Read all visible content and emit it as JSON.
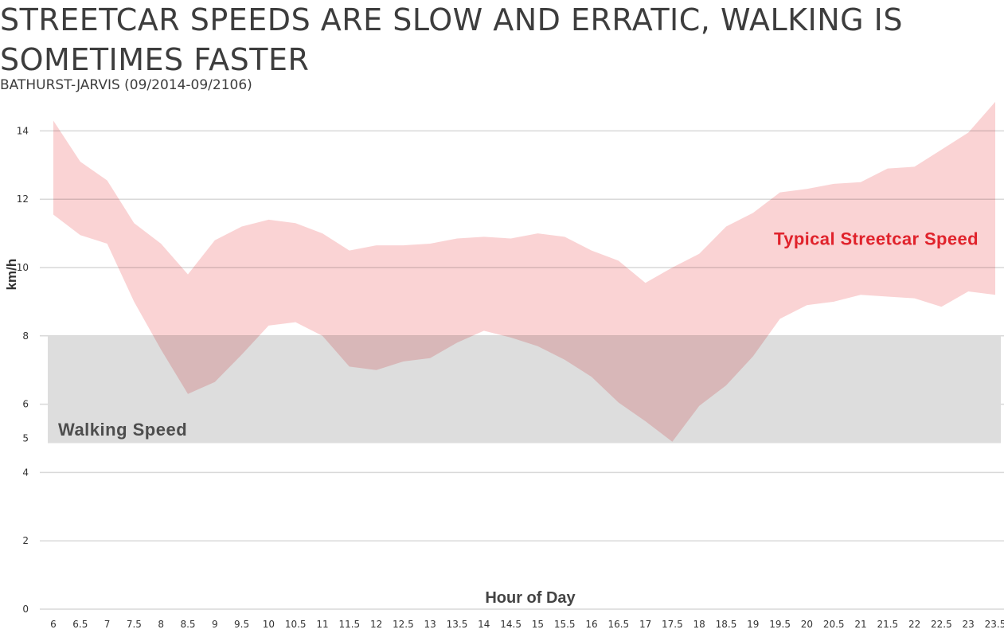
{
  "chart_data": {
    "type": "area",
    "title": "STREETCAR SPEEDS ARE SLOW AND ERRATIC, WALKING IS SOMETIMES FASTER",
    "subtitle": "BATHURST-JARVIS (09/2014-09/2106)",
    "xlabel": "Hour of Day",
    "ylabel": "km/h",
    "x": [
      6,
      6.5,
      7,
      7.5,
      8,
      8.5,
      9,
      9.5,
      10,
      10.5,
      11,
      11.5,
      12,
      12.5,
      13,
      13.5,
      14,
      14.5,
      15,
      15.5,
      16,
      16.5,
      17,
      17.5,
      18,
      18.5,
      19,
      19.5,
      20,
      20.5,
      21,
      21.5,
      22,
      22.5,
      23,
      23.5
    ],
    "x_tick_labels": [
      "6",
      "6.5",
      "7",
      "7.5",
      "8",
      "8.5",
      "9",
      "9.5",
      "10",
      "10.5",
      "11",
      "11.5",
      "12",
      "12.5",
      "13",
      "13.5",
      "14",
      "14.5",
      "15",
      "15.5",
      "16",
      "16.5",
      "17",
      "17.5",
      "18",
      "18.5",
      "19",
      "19.5",
      "20",
      "20.5",
      "21",
      "21.5",
      "22",
      "22.5",
      "23",
      "23.5"
    ],
    "y_ticks": [
      0,
      2,
      4,
      5,
      6,
      8,
      10,
      12,
      14
    ],
    "ylim": [
      0,
      15
    ],
    "grid": true,
    "series": [
      {
        "name": "Typical Streetcar Speed",
        "color": "#f9c9cb",
        "label_color": "#e0222b",
        "upper": [
          14.3,
          13.1,
          12.55,
          11.3,
          10.7,
          9.8,
          10.8,
          11.2,
          11.4,
          11.3,
          11.0,
          10.5,
          10.65,
          10.65,
          10.7,
          10.85,
          10.9,
          10.85,
          11.0,
          10.9,
          10.5,
          10.2,
          9.55,
          10.0,
          10.4,
          11.2,
          11.6,
          12.2,
          12.3,
          12.45,
          12.5,
          12.9,
          12.95,
          13.45,
          13.95,
          14.85
        ],
        "lower": [
          11.55,
          10.95,
          10.7,
          9.0,
          7.6,
          6.3,
          6.65,
          7.45,
          8.3,
          8.4,
          8.0,
          7.1,
          7.0,
          7.25,
          7.35,
          7.8,
          8.15,
          7.95,
          7.7,
          7.3,
          6.8,
          6.05,
          5.5,
          4.9,
          5.95,
          6.55,
          7.4,
          8.5,
          8.9,
          9.0,
          9.2,
          9.15,
          9.1,
          8.85,
          9.3,
          9.2
        ]
      }
    ],
    "walking_band": {
      "label": "Walking Speed",
      "range": [
        5,
        8
      ],
      "color": "#dddddd",
      "label_color": "#4d4d4d"
    }
  }
}
